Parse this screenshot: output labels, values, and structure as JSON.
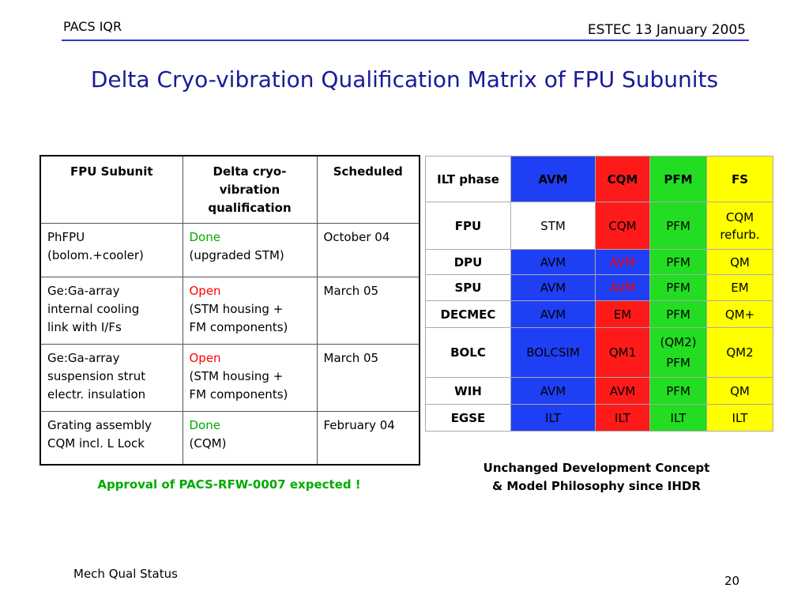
{
  "header": {
    "left": "PACS IQR",
    "right": "ESTEC 13 January 2005"
  },
  "title": "Delta Cryo-vibration Qualification Matrix of FPU Subunits",
  "left_table": {
    "header": [
      "FPU Subunit",
      "Delta cryo-vibration qualification",
      "Scheduled"
    ],
    "rows": [
      {
        "subunit": [
          "PhFPU",
          "(bolom.+cooler)"
        ],
        "status": "Done",
        "detail": [
          "(upgraded STM)"
        ],
        "scheduled": "October 04"
      },
      {
        "subunit": [
          "Ge:Ga-array",
          "internal cooling",
          "link with I/Fs"
        ],
        "status": "Open",
        "detail": [
          "(STM housing +",
          "FM components)"
        ],
        "scheduled": "March 05"
      },
      {
        "subunit": [
          "Ge:Ga-array",
          "suspension strut",
          "electr. insulation"
        ],
        "status": "Open",
        "detail": [
          "(STM housing +",
          "FM components)"
        ],
        "scheduled": "March 05"
      },
      {
        "subunit": [
          "Grating assembly",
          "CQM incl. L Lock"
        ],
        "status": "Done",
        "detail": [
          "(CQM)"
        ],
        "scheduled": "February 04"
      }
    ]
  },
  "right_table": {
    "header": [
      "ILT phase",
      "AVM",
      "CQM",
      "PFM",
      "FS"
    ],
    "rows": [
      [
        "FPU",
        "STM",
        "CQM",
        "PFM",
        "CQM refurb."
      ],
      [
        "DPU",
        "AVM",
        "AVM",
        "PFM",
        "QM"
      ],
      [
        "SPU",
        "AVM",
        "AVM",
        "PFM",
        "EM"
      ],
      [
        "DECMEC",
        "AVM",
        "EM",
        "PFM",
        "QM+"
      ],
      [
        "BOLC",
        "BOLCSIM",
        "QM1",
        "(QM2) PFM",
        "QM2"
      ],
      [
        "WIH",
        "AVM",
        "AVM",
        "PFM",
        "QM"
      ],
      [
        "EGSE",
        "ILT",
        "ILT",
        "ILT",
        "ILT"
      ]
    ]
  },
  "note_left": "Approval of PACS-RFW-0007 expected !",
  "note_right": [
    "Unchanged Development Concept",
    "& Model Philosophy since IHDR"
  ],
  "footer": {
    "left": "Mech Qual Status",
    "right": "20"
  }
}
